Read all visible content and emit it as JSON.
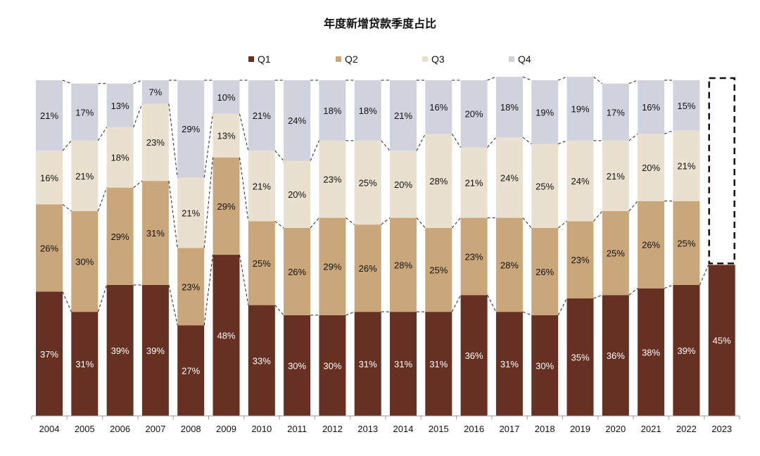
{
  "chart_data": {
    "type": "bar",
    "stacked": true,
    "title": "年度新增贷款季度占比",
    "xlabel": "",
    "ylabel": "",
    "ylim": [
      0,
      1
    ],
    "grid": false,
    "legend_position": "top",
    "categories": [
      "2004",
      "2005",
      "2006",
      "2007",
      "2008",
      "2009",
      "2010",
      "2011",
      "2012",
      "2013",
      "2014",
      "2015",
      "2016",
      "2017",
      "2018",
      "2019",
      "2020",
      "2021",
      "2022",
      "2023"
    ],
    "series": [
      {
        "name": "Q1",
        "color": "#663022",
        "label_color": "#ffffff",
        "values": [
          37,
          31,
          39,
          39,
          27,
          48,
          33,
          30,
          30,
          31,
          31,
          31,
          36,
          31,
          30,
          35,
          36,
          38,
          39,
          45
        ]
      },
      {
        "name": "Q2",
        "color": "#c9a77b",
        "label_color": "#111111",
        "values": [
          26,
          30,
          29,
          31,
          23,
          29,
          25,
          26,
          29,
          26,
          28,
          25,
          23,
          28,
          26,
          23,
          25,
          26,
          25,
          null
        ]
      },
      {
        "name": "Q3",
        "color": "#e9e0d0",
        "label_color": "#111111",
        "values": [
          16,
          21,
          18,
          23,
          21,
          13,
          21,
          20,
          23,
          25,
          20,
          28,
          21,
          24,
          25,
          24,
          21,
          20,
          21,
          null
        ]
      },
      {
        "name": "Q4",
        "color": "#d0d3dd",
        "label_color": "#111111",
        "values": [
          21,
          17,
          13,
          7,
          29,
          10,
          21,
          24,
          18,
          18,
          21,
          16,
          20,
          18,
          19,
          19,
          17,
          16,
          15,
          null
        ]
      }
    ],
    "value_suffix": "%",
    "annotations": [
      {
        "type": "dashed-box",
        "category": "2023",
        "description": "remaining quarters of 2023 (placeholder)"
      },
      {
        "type": "dashed-connectors",
        "description": "dashed lines connecting series boundaries between adjacent bars"
      }
    ]
  }
}
